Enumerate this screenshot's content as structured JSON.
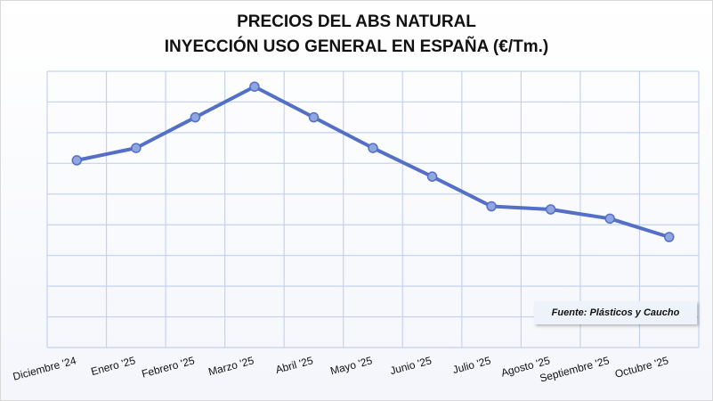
{
  "chart_data": {
    "type": "line",
    "title": "PRECIOS DEL ABS NATURAL",
    "subtitle": "INYECCIÓN USO GENERAL EN ESPAÑA (€/Tm.)",
    "categories": [
      "Diciembre '24",
      "Enero '25",
      "Febrero '25",
      "Marzo '25",
      "Abril '25",
      "Mayo '25",
      "Junio '25",
      "Julio '25",
      "Agosto '25",
      "Septiembre '25",
      "Octubre '25"
    ],
    "series": [
      {
        "values": [
          6.1,
          6.5,
          7.5,
          8.5,
          7.5,
          6.5,
          5.57,
          4.6,
          4.5,
          4.2,
          3.6
        ]
      }
    ],
    "ylim": [
      0,
      9
    ],
    "yticks_labeled": false,
    "grid": true,
    "line_color": "#5470c6",
    "marker_color": "#8fa6e0",
    "grid_color": "#c5d2ee",
    "source": "Fuente: Plásticos y Caucho"
  }
}
